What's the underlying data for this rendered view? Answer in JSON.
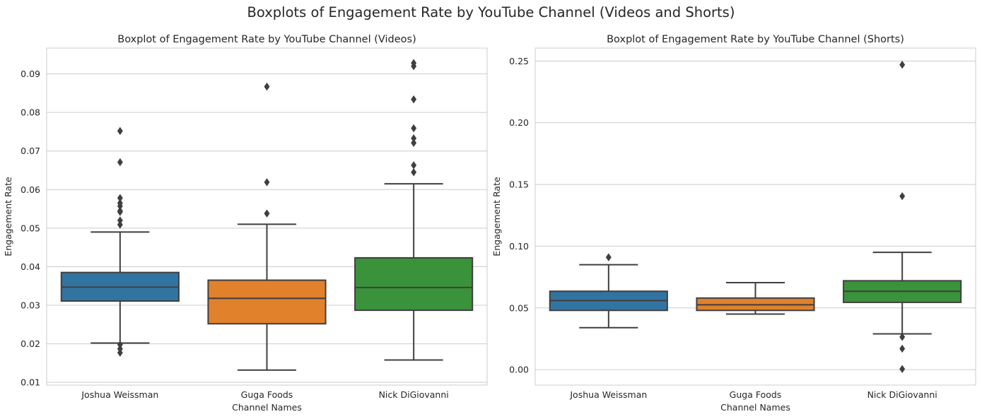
{
  "figure": {
    "title": "Boxplots of Engagement Rate by YouTube Channel (Videos and Shorts)"
  },
  "chart_data": [
    {
      "type": "box",
      "title": "Boxplot of Engagement Rate by YouTube Channel (Videos)",
      "xlabel": "Channel Names",
      "ylabel": "Engagement Rate",
      "categories": [
        "Joshua Weissman",
        "Guga Foods",
        "Nick DiGiovanni"
      ],
      "ylim": [
        0.0093,
        0.0967
      ],
      "yticks": [
        0.01,
        0.02,
        0.03,
        0.04,
        0.05,
        0.06,
        0.07,
        0.08,
        0.09
      ],
      "ytick_labels": [
        "0.01",
        "0.02",
        "0.03",
        "0.04",
        "0.05",
        "0.06",
        "0.07",
        "0.08",
        "0.09"
      ],
      "grid": true,
      "colors": [
        "#3274a1",
        "#e1812c",
        "#3a923a"
      ],
      "boxes": [
        {
          "whislo": 0.0202,
          "q1": 0.0311,
          "med": 0.0347,
          "q3": 0.0385,
          "whishi": 0.049,
          "fliers": [
            0.0198,
            0.0187,
            0.0177,
            0.0509,
            0.052,
            0.0542,
            0.0545,
            0.0557,
            0.0565,
            0.0578,
            0.0671,
            0.0752
          ]
        },
        {
          "whislo": 0.0132,
          "q1": 0.0252,
          "med": 0.0318,
          "q3": 0.0365,
          "whishi": 0.051,
          "fliers": [
            0.0538,
            0.0619,
            0.0867
          ]
        },
        {
          "whislo": 0.0158,
          "q1": 0.0287,
          "med": 0.0346,
          "q3": 0.0423,
          "whishi": 0.0615,
          "fliers": [
            0.0645,
            0.0663,
            0.0721,
            0.0733,
            0.0759,
            0.0834,
            0.092,
            0.0928
          ]
        }
      ]
    },
    {
      "type": "box",
      "title": "Boxplot of Engagement Rate by YouTube Channel (Shorts)",
      "xlabel": "Channel Names",
      "ylabel": "Engagement Rate",
      "categories": [
        "Joshua Weissman",
        "Guga Foods",
        "Nick DiGiovanni"
      ],
      "ylim": [
        -0.0125,
        0.2605
      ],
      "yticks": [
        0.0,
        0.05,
        0.1,
        0.15,
        0.2,
        0.25
      ],
      "ytick_labels": [
        "0.00",
        "0.05",
        "0.10",
        "0.15",
        "0.20",
        "0.25"
      ],
      "grid": true,
      "colors": [
        "#3274a1",
        "#e1812c",
        "#3a923a"
      ],
      "boxes": [
        {
          "whislo": 0.034,
          "q1": 0.048,
          "med": 0.056,
          "q3": 0.0635,
          "whishi": 0.085,
          "fliers": [
            0.091
          ]
        },
        {
          "whislo": 0.045,
          "q1": 0.048,
          "med": 0.0525,
          "q3": 0.058,
          "whishi": 0.0705,
          "fliers": []
        },
        {
          "whislo": 0.029,
          "q1": 0.0545,
          "med": 0.0635,
          "q3": 0.072,
          "whishi": 0.095,
          "fliers": [
            0.0265,
            0.017,
            0.0005,
            0.1405,
            0.247
          ]
        }
      ]
    }
  ]
}
